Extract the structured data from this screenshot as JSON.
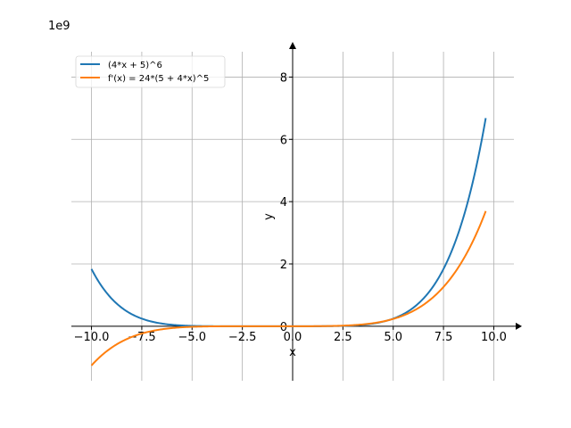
{
  "chart_data": {
    "type": "line",
    "offset_label": "1e9",
    "xlabel": "x",
    "ylabel": "y",
    "xlim": [
      -11,
      11
    ],
    "ylim": [
      -1.75,
      9.1
    ],
    "x_ticks": [
      -10.0,
      -7.5,
      -5.0,
      -2.5,
      0.0,
      2.5,
      5.0,
      7.5,
      10.0
    ],
    "x_tick_labels": [
      "−10.0",
      "−7.5",
      "−5.0",
      "−2.5",
      "0.0",
      "2.5",
      "5.0",
      "7.5",
      "10.0"
    ],
    "y_ticks": [
      0,
      2,
      4,
      6,
      8
    ],
    "y_tick_labels": [
      "0",
      "2",
      "4",
      "6",
      "8"
    ],
    "grid": true,
    "legend_position": "top-left",
    "x_domain": [
      -10,
      9.6
    ],
    "series": [
      {
        "name": "(4*x + 5)^6",
        "color": "#1f77b4",
        "expression": "(4*x+5)^6"
      },
      {
        "name": "f'(x) = 24*(5 + 4*x)^5",
        "color": "#ff7f0e",
        "expression": "24*(5+4*x)^5"
      }
    ]
  }
}
